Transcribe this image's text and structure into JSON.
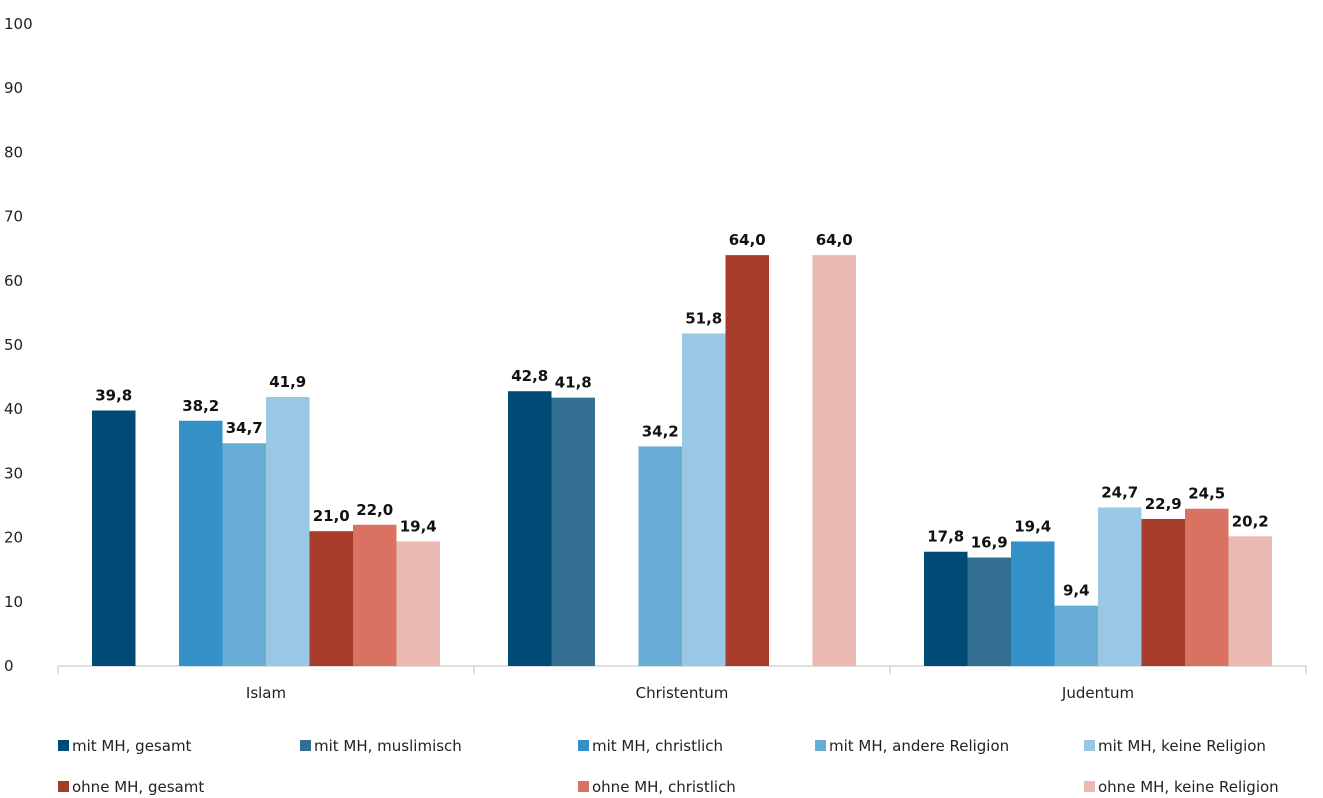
{
  "chart_data": {
    "type": "bar",
    "categories": [
      "Islam",
      "Christentum",
      "Judentum"
    ],
    "ylim": [
      0,
      100
    ],
    "yticks": [
      "0",
      "10",
      "20",
      "30",
      "40",
      "50",
      "60",
      "70",
      "80",
      "90",
      "100"
    ],
    "grid": false,
    "legend_position": "bottom",
    "series": [
      {
        "name": "mit MH, gesamt",
        "color": "#004a76",
        "values": [
          39.8,
          42.8,
          17.8
        ],
        "labels": [
          "39,8",
          "42,8",
          "17,8"
        ]
      },
      {
        "name": "mit MH, muslimisch",
        "color": "#336f92",
        "values": [
          null,
          41.8,
          16.9
        ],
        "labels": [
          "",
          "41,8",
          "16,9"
        ]
      },
      {
        "name": "mit MH, christlich",
        "color": "#3391c7",
        "values": [
          38.2,
          null,
          19.4
        ],
        "labels": [
          "38,2",
          "",
          "19,4"
        ]
      },
      {
        "name": "mit MH, andere Religion",
        "color": "#67add6",
        "values": [
          34.7,
          34.2,
          9.4
        ],
        "labels": [
          "34,7",
          "34,2",
          "9,4"
        ]
      },
      {
        "name": "mit MH, keine Religion",
        "color": "#99c8e4",
        "values": [
          41.9,
          51.8,
          24.7
        ],
        "labels": [
          "41,9",
          "51,8",
          "24,7"
        ]
      },
      {
        "name": "ohne MH, gesamt",
        "color": "#a83c2a",
        "values": [
          21.0,
          64.0,
          22.9
        ],
        "labels": [
          "21,0",
          "64,0",
          "22,9"
        ]
      },
      {
        "name": "ohne MH, christlich",
        "color": "#da7261",
        "values": [
          22.0,
          null,
          24.5
        ],
        "labels": [
          "22,0",
          "",
          "24,5"
        ]
      },
      {
        "name": "ohne MH, keine Religion",
        "color": "#ebb9b1",
        "values": [
          19.4,
          64.0,
          20.2
        ],
        "labels": [
          "19,4",
          "64,0",
          "20,2"
        ]
      }
    ]
  }
}
